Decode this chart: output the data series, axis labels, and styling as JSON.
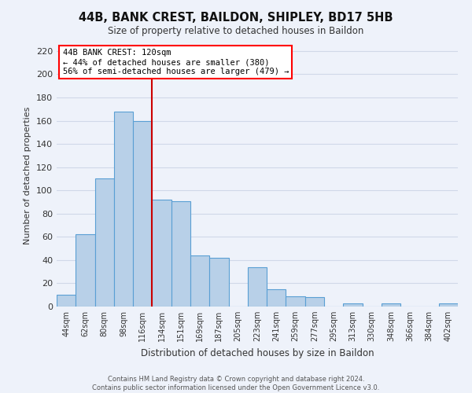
{
  "title": "44B, BANK CREST, BAILDON, SHIPLEY, BD17 5HB",
  "subtitle": "Size of property relative to detached houses in Baildon",
  "xlabel": "Distribution of detached houses by size in Baildon",
  "ylabel": "Number of detached properties",
  "categories": [
    "44sqm",
    "62sqm",
    "80sqm",
    "98sqm",
    "116sqm",
    "134sqm",
    "151sqm",
    "169sqm",
    "187sqm",
    "205sqm",
    "223sqm",
    "241sqm",
    "259sqm",
    "277sqm",
    "295sqm",
    "313sqm",
    "330sqm",
    "348sqm",
    "366sqm",
    "384sqm",
    "402sqm"
  ],
  "values": [
    10,
    62,
    110,
    168,
    160,
    92,
    91,
    44,
    42,
    0,
    34,
    15,
    9,
    8,
    0,
    3,
    0,
    3,
    0,
    0,
    3
  ],
  "bar_color": "#b8d0e8",
  "bar_edge_color": "#5a9fd4",
  "highlight_index": 4,
  "annotation_title": "44B BANK CREST: 120sqm",
  "annotation_line1": "← 44% of detached houses are smaller (380)",
  "annotation_line2": "56% of semi-detached houses are larger (479) →",
  "ylim": [
    0,
    225
  ],
  "yticks": [
    0,
    20,
    40,
    60,
    80,
    100,
    120,
    140,
    160,
    180,
    200,
    220
  ],
  "footer_line1": "Contains HM Land Registry data © Crown copyright and database right 2024.",
  "footer_line2": "Contains public sector information licensed under the Open Government Licence v3.0.",
  "background_color": "#eef2fa",
  "grid_color": "#d0d8e8",
  "red_line_color": "#cc0000"
}
